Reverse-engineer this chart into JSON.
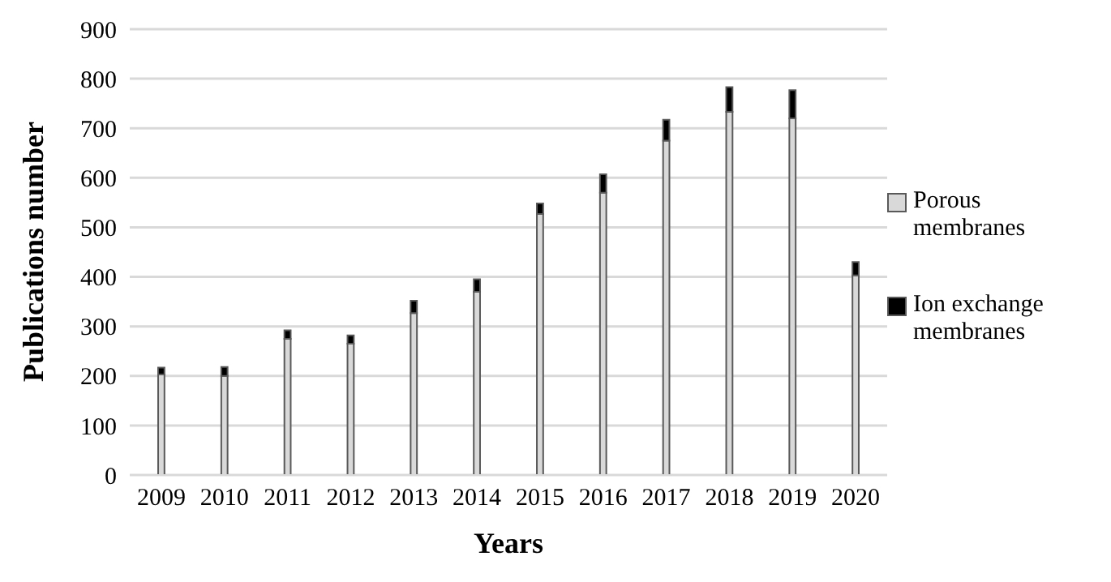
{
  "chart_data": {
    "type": "bar",
    "stacked": true,
    "xlabel": "Years",
    "ylabel": "Publications number",
    "categories": [
      "2009",
      "2010",
      "2011",
      "2012",
      "2013",
      "2014",
      "2015",
      "2016",
      "2017",
      "2018",
      "2019",
      "2020"
    ],
    "series": [
      {
        "name": "Porous membranes",
        "color": "#d9d9d9",
        "values": [
          203,
          200,
          275,
          265,
          327,
          370,
          527,
          570,
          675,
          733,
          720,
          403
        ]
      },
      {
        "name": "Ion exchange membranes",
        "color": "#000000",
        "values": [
          14,
          18,
          17,
          17,
          25,
          25,
          21,
          37,
          42,
          50,
          57,
          27
        ]
      }
    ],
    "ylim": [
      0,
      900
    ],
    "yticks": [
      0,
      100,
      200,
      300,
      400,
      500,
      600,
      700,
      800,
      900
    ],
    "grid": "y",
    "legend": "right"
  }
}
